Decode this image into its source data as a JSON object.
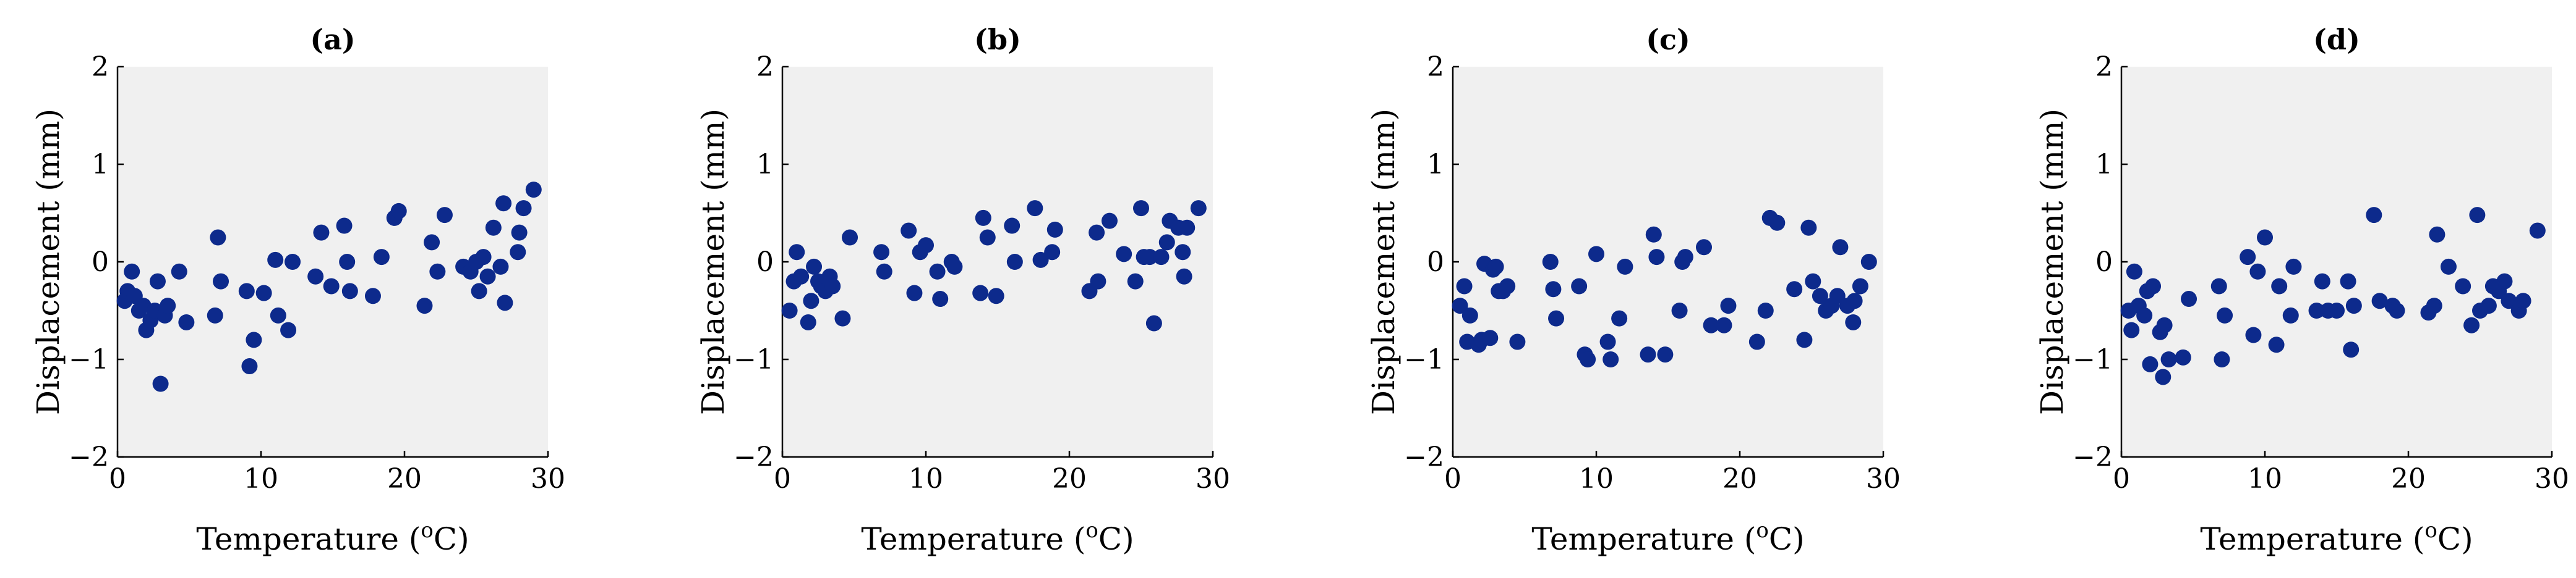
{
  "chart_data": [
    {
      "type": "scatter",
      "title": "(a)",
      "xlabel": "Temperature (oC)",
      "ylabel": "Displacement (mm)",
      "xlim": [
        0,
        30
      ],
      "ylim": [
        -2,
        2
      ],
      "xticks": [
        0,
        10,
        20,
        30
      ],
      "yticks": [
        2,
        1,
        0,
        -1,
        -2
      ],
      "grid": false,
      "marker_color": "#0d2a8c",
      "background": "#f0f0f0",
      "points": [
        [
          0.5,
          -0.4
        ],
        [
          0.7,
          -0.3
        ],
        [
          1,
          -0.1
        ],
        [
          1.2,
          -0.35
        ],
        [
          1.5,
          -0.5
        ],
        [
          1.8,
          -0.45
        ],
        [
          2,
          -0.7
        ],
        [
          2.3,
          -0.6
        ],
        [
          2.6,
          -0.5
        ],
        [
          2.8,
          -0.2
        ],
        [
          3,
          -1.25
        ],
        [
          3.3,
          -0.55
        ],
        [
          3.5,
          -0.45
        ],
        [
          4.3,
          -0.1
        ],
        [
          4.8,
          -0.62
        ],
        [
          6.8,
          -0.55
        ],
        [
          7,
          0.25
        ],
        [
          7.2,
          -0.2
        ],
        [
          9,
          -0.3
        ],
        [
          9.2,
          -1.07
        ],
        [
          9.5,
          -0.8
        ],
        [
          10.2,
          -0.32
        ],
        [
          11,
          0.02
        ],
        [
          11.2,
          -0.55
        ],
        [
          11.9,
          -0.7
        ],
        [
          12.2,
          0
        ],
        [
          13.8,
          -0.15
        ],
        [
          14.2,
          0.3
        ],
        [
          14.9,
          -0.25
        ],
        [
          15.8,
          0.37
        ],
        [
          16,
          0
        ],
        [
          16.2,
          -0.3
        ],
        [
          17.8,
          -0.35
        ],
        [
          18.4,
          0.05
        ],
        [
          19.3,
          0.45
        ],
        [
          19.6,
          0.52
        ],
        [
          21.4,
          -0.45
        ],
        [
          21.9,
          0.2
        ],
        [
          22.3,
          -0.1
        ],
        [
          22.8,
          0.48
        ],
        [
          24.1,
          -0.05
        ],
        [
          24.6,
          -0.1
        ],
        [
          25,
          0
        ],
        [
          25.2,
          -0.3
        ],
        [
          25.5,
          0.05
        ],
        [
          25.8,
          -0.15
        ],
        [
          26.2,
          0.35
        ],
        [
          26.7,
          -0.05
        ],
        [
          26.9,
          0.6
        ],
        [
          27,
          -0.42
        ],
        [
          27.9,
          0.1
        ],
        [
          28,
          0.3
        ],
        [
          28.3,
          0.55
        ],
        [
          29,
          0.74
        ]
      ]
    },
    {
      "type": "scatter",
      "title": "(b)",
      "xlabel": "Temperature (oC)",
      "ylabel": "Displacement (mm)",
      "xlim": [
        0,
        30
      ],
      "ylim": [
        -2,
        2
      ],
      "xticks": [
        0,
        10,
        20,
        30
      ],
      "yticks": [
        2,
        1,
        0,
        -1,
        -2
      ],
      "grid": false,
      "marker_color": "#0d2a8c",
      "background": "#f0f0f0",
      "points": [
        [
          0.5,
          -0.5
        ],
        [
          0.8,
          -0.2
        ],
        [
          1,
          0.1
        ],
        [
          1.3,
          -0.15
        ],
        [
          1.8,
          -0.62
        ],
        [
          2,
          -0.4
        ],
        [
          2.2,
          -0.05
        ],
        [
          2.5,
          -0.2
        ],
        [
          2.7,
          -0.25
        ],
        [
          3,
          -0.3
        ],
        [
          3.3,
          -0.15
        ],
        [
          3.5,
          -0.25
        ],
        [
          4.2,
          -0.58
        ],
        [
          4.7,
          0.25
        ],
        [
          6.9,
          0.1
        ],
        [
          7.1,
          -0.1
        ],
        [
          8.8,
          0.32
        ],
        [
          9.2,
          -0.32
        ],
        [
          9.6,
          0.1
        ],
        [
          10,
          0.17
        ],
        [
          10.8,
          -0.1
        ],
        [
          11,
          -0.38
        ],
        [
          11.8,
          0
        ],
        [
          12,
          -0.05
        ],
        [
          13.8,
          -0.32
        ],
        [
          14,
          0.45
        ],
        [
          14.3,
          0.25
        ],
        [
          14.9,
          -0.35
        ],
        [
          16,
          0.37
        ],
        [
          16.2,
          0
        ],
        [
          17.6,
          0.55
        ],
        [
          18,
          0.02
        ],
        [
          18.8,
          0.1
        ],
        [
          19,
          0.33
        ],
        [
          21.4,
          -0.3
        ],
        [
          21.9,
          0.3
        ],
        [
          22,
          -0.2
        ],
        [
          22.8,
          0.42
        ],
        [
          23.8,
          0.08
        ],
        [
          24.6,
          -0.2
        ],
        [
          25,
          0.55
        ],
        [
          25.2,
          0.05
        ],
        [
          25.6,
          0.05
        ],
        [
          25.9,
          -0.63
        ],
        [
          26.4,
          0.05
        ],
        [
          26.8,
          0.2
        ],
        [
          27,
          0.42
        ],
        [
          27.6,
          0.35
        ],
        [
          27.9,
          0.1
        ],
        [
          28,
          -0.15
        ],
        [
          28.2,
          0.35
        ],
        [
          29,
          0.55
        ]
      ]
    },
    {
      "type": "scatter",
      "title": "(c)",
      "xlabel": "Temperature (oC)",
      "ylabel": "Displacement (mm)",
      "xlim": [
        0,
        30
      ],
      "ylim": [
        -2,
        2
      ],
      "xticks": [
        0,
        10,
        20,
        30
      ],
      "yticks": [
        2,
        1,
        0,
        -1,
        -2
      ],
      "grid": false,
      "marker_color": "#0d2a8c",
      "background": "#f0f0f0",
      "points": [
        [
          0.5,
          -0.45
        ],
        [
          0.8,
          -0.25
        ],
        [
          1,
          -0.82
        ],
        [
          1.2,
          -0.55
        ],
        [
          1.8,
          -0.85
        ],
        [
          2,
          -0.8
        ],
        [
          2.2,
          -0.02
        ],
        [
          2.6,
          -0.78
        ],
        [
          2.8,
          -0.08
        ],
        [
          3,
          -0.05
        ],
        [
          3.2,
          -0.3
        ],
        [
          3.5,
          -0.3
        ],
        [
          3.8,
          -0.25
        ],
        [
          4.5,
          -0.82
        ],
        [
          6.8,
          0
        ],
        [
          7,
          -0.28
        ],
        [
          7.2,
          -0.58
        ],
        [
          8.8,
          -0.25
        ],
        [
          9.2,
          -0.95
        ],
        [
          9.4,
          -1
        ],
        [
          10,
          0.08
        ],
        [
          10.8,
          -0.82
        ],
        [
          11,
          -1
        ],
        [
          11.6,
          -0.58
        ],
        [
          12,
          -0.05
        ],
        [
          13.6,
          -0.95
        ],
        [
          14,
          0.28
        ],
        [
          14.2,
          0.05
        ],
        [
          14.8,
          -0.95
        ],
        [
          15.8,
          -0.5
        ],
        [
          16,
          0
        ],
        [
          16.2,
          0.05
        ],
        [
          17.5,
          0.15
        ],
        [
          18,
          -0.65
        ],
        [
          18.9,
          -0.65
        ],
        [
          19.2,
          -0.45
        ],
        [
          21.2,
          -0.82
        ],
        [
          21.8,
          -0.5
        ],
        [
          22.1,
          0.45
        ],
        [
          22.6,
          0.4
        ],
        [
          23.8,
          -0.28
        ],
        [
          24.5,
          -0.8
        ],
        [
          24.8,
          0.35
        ],
        [
          25.1,
          -0.2
        ],
        [
          25.6,
          -0.35
        ],
        [
          26,
          -0.5
        ],
        [
          26.4,
          -0.45
        ],
        [
          26.8,
          -0.35
        ],
        [
          27,
          0.15
        ],
        [
          27.5,
          -0.45
        ],
        [
          27.9,
          -0.62
        ],
        [
          28,
          -0.4
        ],
        [
          28.4,
          -0.25
        ],
        [
          29,
          0
        ]
      ]
    },
    {
      "type": "scatter",
      "title": "(d)",
      "xlabel": "Temperature (oC)",
      "ylabel": "Displacement (mm)",
      "xlim": [
        0,
        30
      ],
      "ylim": [
        -2,
        2
      ],
      "xticks": [
        0,
        10,
        20,
        30
      ],
      "yticks": [
        2,
        1,
        0,
        -1,
        -2
      ],
      "grid": false,
      "marker_color": "#0d2a8c",
      "background": "#f0f0f0",
      "points": [
        [
          0.5,
          -0.5
        ],
        [
          0.7,
          -0.7
        ],
        [
          0.9,
          -0.1
        ],
        [
          1.2,
          -0.45
        ],
        [
          1.6,
          -0.55
        ],
        [
          1.8,
          -0.3
        ],
        [
          2,
          -1.05
        ],
        [
          2.2,
          -0.25
        ],
        [
          2.7,
          -0.72
        ],
        [
          2.9,
          -1.18
        ],
        [
          3,
          -0.65
        ],
        [
          3.3,
          -1
        ],
        [
          4.3,
          -0.98
        ],
        [
          4.7,
          -0.38
        ],
        [
          6.8,
          -0.25
        ],
        [
          7,
          -1
        ],
        [
          7.2,
          -0.55
        ],
        [
          8.8,
          0.05
        ],
        [
          9.2,
          -0.75
        ],
        [
          9.5,
          -0.1
        ],
        [
          10,
          0.25
        ],
        [
          10.8,
          -0.85
        ],
        [
          11,
          -0.25
        ],
        [
          11.8,
          -0.55
        ],
        [
          12,
          -0.05
        ],
        [
          13.6,
          -0.5
        ],
        [
          14,
          -0.2
        ],
        [
          14.4,
          -0.5
        ],
        [
          15,
          -0.5
        ],
        [
          15.8,
          -0.2
        ],
        [
          16,
          -0.9
        ],
        [
          16.2,
          -0.45
        ],
        [
          17.6,
          0.48
        ],
        [
          18,
          -0.4
        ],
        [
          18.9,
          -0.45
        ],
        [
          19.2,
          -0.5
        ],
        [
          21.4,
          -0.52
        ],
        [
          21.8,
          -0.45
        ],
        [
          22,
          0.28
        ],
        [
          22.8,
          -0.05
        ],
        [
          23.8,
          -0.25
        ],
        [
          24.4,
          -0.65
        ],
        [
          24.8,
          0.48
        ],
        [
          25,
          -0.5
        ],
        [
          25.6,
          -0.45
        ],
        [
          25.9,
          -0.25
        ],
        [
          26.3,
          -0.3
        ],
        [
          26.7,
          -0.2
        ],
        [
          27,
          -0.4
        ],
        [
          27.7,
          -0.5
        ],
        [
          28,
          -0.4
        ],
        [
          29,
          0.32
        ]
      ]
    }
  ]
}
